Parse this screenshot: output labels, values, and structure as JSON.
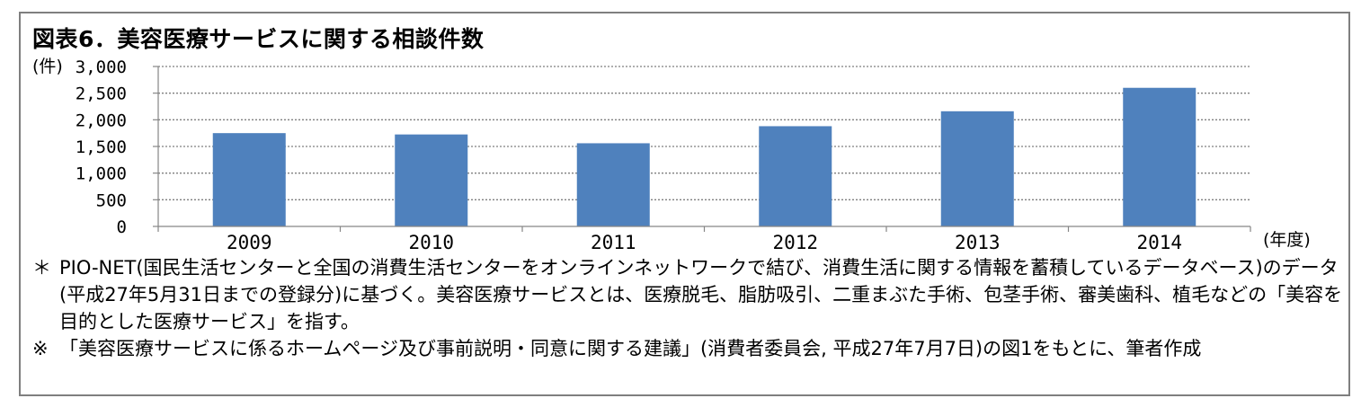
{
  "title": "図表6．美容医療サービスに関する相談件数",
  "chart_data": {
    "type": "bar",
    "title": "図表6．美容医療サービスに関する相談件数",
    "ylabel": "(件)",
    "xlabel": "(年度)",
    "categories": [
      "2009",
      "2010",
      "2011",
      "2012",
      "2013",
      "2014"
    ],
    "values": [
      1750,
      1725,
      1560,
      1880,
      2160,
      2600
    ],
    "ylim": [
      0,
      3000
    ],
    "yticks": [
      0,
      500,
      1000,
      1500,
      2000,
      2500,
      3000
    ],
    "ytick_labels": [
      "0",
      "500",
      "1,000",
      "1,500",
      "2,000",
      "2,500",
      "3,000"
    ],
    "grid": true,
    "bar_color": "#4f81bd"
  },
  "notes": [
    {
      "mark": "＊",
      "text": "PIO-NET(国民生活センターと全国の消費生活センターをオンラインネットワークで結び、消費生活に関する情報を蓄積しているデータベース)のデータ(平成27年5月31日までの登録分)に基づく。美容医療サービスとは、医療脱毛、脂肪吸引、二重まぶた手術、包茎手術、審美歯科、植毛などの「美容を目的とした医療サービス」を指す。"
    },
    {
      "mark": "※",
      "text": "「美容医療サービスに係るホームページ及び事前説明・同意に関する建議」(消費者委員会, 平成27年7月7日)の図1をもとに、筆者作成"
    }
  ]
}
